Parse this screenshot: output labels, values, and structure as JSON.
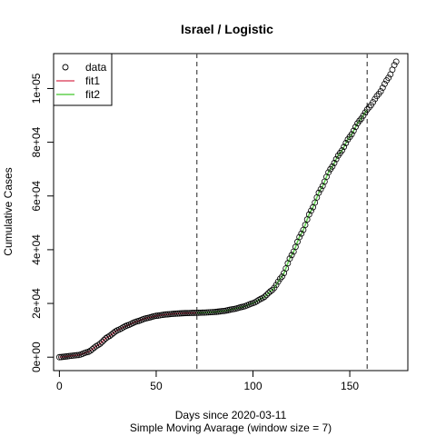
{
  "chart_data": {
    "type": "scatter",
    "title": "Israel / Logistic",
    "xlabel": "Days since 2020-03-11",
    "subtitle": "Simple Moving Avarage (window size = 7)",
    "ylabel": "Cumulative Cases",
    "xlim": [
      -3,
      180
    ],
    "ylim": [
      -5000,
      113000
    ],
    "x_ticks": [
      0,
      50,
      100,
      150
    ],
    "x_tick_labels": [
      "0",
      "50",
      "100",
      "150"
    ],
    "y_ticks": [
      0,
      20000,
      40000,
      60000,
      80000,
      100000
    ],
    "y_tick_labels": [
      "0e+00",
      "2e+04",
      "4e+04",
      "6e+04",
      "8e+04",
      "1e+05"
    ],
    "vlines": [
      71,
      159
    ],
    "legend": {
      "position": "top-left",
      "entries": [
        {
          "label": "data",
          "kind": "point",
          "color": "#000000"
        },
        {
          "label": "fit1",
          "kind": "line",
          "color": "#DF536B"
        },
        {
          "label": "fit2",
          "kind": "line",
          "color": "#61D04F"
        }
      ]
    },
    "series": [
      {
        "name": "data",
        "kind": "points",
        "color": "#000000",
        "x": [
          0,
          10,
          15,
          20,
          25,
          30,
          35,
          40,
          45,
          50,
          55,
          60,
          65,
          70,
          75,
          80,
          85,
          90,
          95,
          100,
          105,
          110,
          115,
          120,
          125,
          130,
          135,
          140,
          145,
          150,
          155,
          160,
          165,
          170,
          174
        ],
        "y": [
          0,
          800,
          2000,
          4500,
          7500,
          10000,
          11800,
          13300,
          14500,
          15400,
          15900,
          16200,
          16400,
          16500,
          16600,
          16800,
          17200,
          17900,
          18800,
          20100,
          22000,
          25000,
          30000,
          38000,
          46000,
          54500,
          62500,
          70000,
          76000,
          82000,
          88000,
          93000,
          98000,
          104000,
          110000
        ]
      },
      {
        "name": "fit1",
        "kind": "line",
        "color": "#DF536B",
        "x": [
          0,
          10,
          15,
          20,
          25,
          30,
          35,
          40,
          45,
          50,
          55,
          60,
          65,
          71
        ],
        "y": [
          0,
          800,
          2000,
          4500,
          7500,
          10000,
          11800,
          13300,
          14500,
          15400,
          15900,
          16200,
          16400,
          16500
        ]
      },
      {
        "name": "fit2",
        "kind": "line",
        "color": "#61D04F",
        "x": [
          71,
          75,
          80,
          85,
          90,
          95,
          100,
          105,
          110,
          115,
          120,
          125,
          130,
          135,
          140,
          145,
          150,
          155,
          159
        ],
        "y": [
          16500,
          16600,
          16800,
          17200,
          17900,
          18800,
          20100,
          22000,
          25000,
          30000,
          38000,
          46000,
          54500,
          62500,
          70000,
          76000,
          82000,
          88000,
          92000
        ]
      }
    ]
  }
}
